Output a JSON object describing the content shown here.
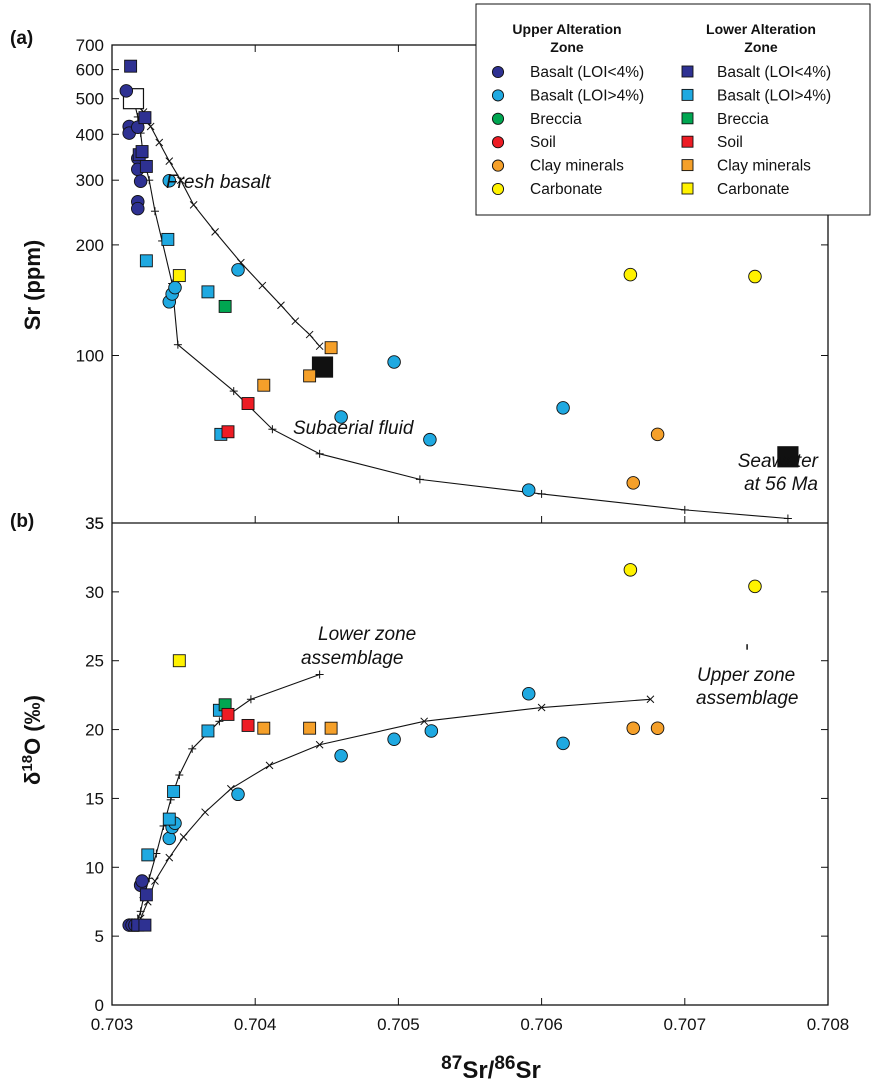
{
  "chart_data": [
    {
      "panel": "(a)",
      "type": "scatter",
      "ylabel": "Sr (ppm)",
      "xlim": [
        0.703,
        0.708
      ],
      "ylim": [
        35,
        700
      ],
      "yticks": [
        100,
        200,
        300,
        400,
        500,
        600,
        700
      ],
      "ytick_labels": [
        "100",
        "200",
        "300",
        "400",
        "500",
        "600",
        "700"
      ],
      "annotations": [
        "Fresh basalt",
        "Subaerial fluid",
        "Seawater",
        "at 56 Ma"
      ],
      "endmembers": [
        {
          "label": "Fresh basalt",
          "x": 0.70315,
          "y": 500,
          "style": "open-square"
        },
        {
          "label": "Seawater at 56 Ma",
          "x": 0.70772,
          "y": 53,
          "style": "filled-square"
        },
        {
          "label": "Subaerial fluid",
          "x": 0.70447,
          "y": 93,
          "style": "filled-square"
        }
      ],
      "series": [
        {
          "name": "Basalt (LOI<4%)",
          "zone": "upper",
          "marker": "circle",
          "color": "#2e3192",
          "points": [
            [
              0.7031,
              525
            ],
            [
              0.70312,
              420
            ],
            [
              0.70312,
              403
            ],
            [
              0.70318,
              418
            ],
            [
              0.70318,
              344
            ],
            [
              0.70318,
              321
            ],
            [
              0.70318,
              262
            ],
            [
              0.70318,
              251
            ],
            [
              0.7032,
              298
            ]
          ]
        },
        {
          "name": "Basalt (LOI>4%)",
          "zone": "upper",
          "marker": "circle",
          "color": "#1fa9e1",
          "points": [
            [
              0.7034,
              299
            ],
            [
              0.7034,
              140
            ],
            [
              0.70342,
              147
            ],
            [
              0.70344,
              153
            ],
            [
              0.70388,
              171
            ],
            [
              0.7046,
              68
            ],
            [
              0.70497,
              96
            ],
            [
              0.70522,
              59
            ],
            [
              0.70591,
              43
            ],
            [
              0.70615,
              72
            ]
          ]
        },
        {
          "name": "Clay minerals",
          "zone": "upper",
          "marker": "circle",
          "color": "#f5a02a",
          "points": [
            [
              0.70664,
              45
            ],
            [
              0.70681,
              61
            ]
          ]
        },
        {
          "name": "Carbonate",
          "zone": "upper",
          "marker": "circle",
          "color": "#fff200",
          "points": [
            [
              0.70662,
              166
            ],
            [
              0.70749,
              164
            ]
          ]
        },
        {
          "name": "Basalt (LOI<4%)",
          "zone": "lower",
          "marker": "square",
          "color": "#2e3192",
          "points": [
            [
              0.70313,
              613
            ],
            [
              0.70319,
              352
            ],
            [
              0.70321,
              359
            ],
            [
              0.70323,
              444
            ],
            [
              0.70324,
              327
            ]
          ]
        },
        {
          "name": "Basalt (LOI>4%)",
          "zone": "lower",
          "marker": "square",
          "color": "#1fa9e1",
          "points": [
            [
              0.70324,
              181
            ],
            [
              0.70339,
              207
            ],
            [
              0.70367,
              149
            ],
            [
              0.70376,
              61
            ]
          ]
        },
        {
          "name": "Breccia",
          "zone": "lower",
          "marker": "square",
          "color": "#00a651",
          "points": [
            [
              0.70379,
              136
            ]
          ]
        },
        {
          "name": "Soil",
          "zone": "lower",
          "marker": "square",
          "color": "#ed1c24",
          "points": [
            [
              0.70381,
              62
            ],
            [
              0.70395,
              74
            ]
          ]
        },
        {
          "name": "Clay minerals",
          "zone": "lower",
          "marker": "square",
          "color": "#f5a02a",
          "points": [
            [
              0.70406,
              83
            ],
            [
              0.70438,
              88
            ],
            [
              0.70453,
              105
            ]
          ]
        },
        {
          "name": "Carbonate",
          "zone": "lower",
          "marker": "square",
          "color": "#fff200",
          "points": [
            [
              0.70347,
              165
            ]
          ]
        }
      ],
      "mixing_curves": [
        {
          "marker": "x",
          "points": [
            [
              0.70315,
              500
            ],
            [
              0.70322,
              460
            ],
            [
              0.70327,
              420
            ],
            [
              0.70333,
              380
            ],
            [
              0.7034,
              338
            ],
            [
              0.70348,
              300
            ],
            [
              0.70357,
              257
            ],
            [
              0.70372,
              217
            ],
            [
              0.7039,
              179
            ],
            [
              0.70405,
              155
            ],
            [
              0.70418,
              137
            ],
            [
              0.70428,
              124
            ],
            [
              0.70438,
              114
            ],
            [
              0.70445,
              106
            ]
          ]
        },
        {
          "marker": "+",
          "points": [
            [
              0.70315,
              500
            ],
            [
              0.70318,
              446
            ],
            [
              0.7032,
              403
            ],
            [
              0.70322,
              345
            ],
            [
              0.70326,
              300
            ],
            [
              0.7033,
              247
            ],
            [
              0.70335,
              205
            ],
            [
              0.70342,
              157
            ],
            [
              0.70346,
              107
            ],
            [
              0.70385,
              80
            ],
            [
              0.70412,
              63
            ],
            [
              0.70445,
              54
            ],
            [
              0.70515,
              46
            ],
            [
              0.706,
              42
            ],
            [
              0.707,
              38
            ],
            [
              0.70772,
              36
            ]
          ]
        }
      ]
    },
    {
      "panel": "(b)",
      "type": "scatter",
      "ylabel": "δ18O (‰)",
      "xlabel": "87Sr/86Sr",
      "xlim": [
        0.703,
        0.708
      ],
      "ylim": [
        0,
        35
      ],
      "xticks": [
        0.703,
        0.704,
        0.705,
        0.706,
        0.707,
        0.708
      ],
      "xtick_labels": [
        "0.703",
        "0.704",
        "0.705",
        "0.706",
        "0.707",
        "0.708"
      ],
      "yticks": [
        0,
        5,
        10,
        15,
        20,
        25,
        30,
        35
      ],
      "ytick_labels": [
        "0",
        "5",
        "10",
        "15",
        "20",
        "25",
        "30",
        "35"
      ],
      "annotations": [
        "Lower zone",
        "assemblage",
        "Upper zone",
        "assemblage"
      ],
      "series": [
        {
          "name": "Basalt (LOI<4%)",
          "zone": "upper",
          "marker": "circle",
          "color": "#2e3192",
          "points": [
            [
              0.70312,
              5.8
            ],
            [
              0.70314,
              5.8
            ],
            [
              0.70316,
              5.8
            ],
            [
              0.70318,
              5.8
            ],
            [
              0.7032,
              8.7
            ],
            [
              0.70321,
              9.0
            ]
          ]
        },
        {
          "name": "Basalt (LOI>4%)",
          "zone": "upper",
          "marker": "circle",
          "color": "#1fa9e1",
          "points": [
            [
              0.7034,
              12.1
            ],
            [
              0.70342,
              12.9
            ],
            [
              0.70344,
              13.2
            ],
            [
              0.70388,
              15.3
            ],
            [
              0.7046,
              18.1
            ],
            [
              0.70497,
              19.3
            ],
            [
              0.70523,
              19.9
            ],
            [
              0.70591,
              22.6
            ],
            [
              0.70615,
              19.0
            ]
          ]
        },
        {
          "name": "Clay minerals",
          "zone": "upper",
          "marker": "circle",
          "color": "#f5a02a",
          "points": [
            [
              0.70664,
              20.1
            ],
            [
              0.70681,
              20.1
            ]
          ]
        },
        {
          "name": "Carbonate",
          "zone": "upper",
          "marker": "circle",
          "color": "#fff200",
          "points": [
            [
              0.70662,
              31.6
            ],
            [
              0.70749,
              30.4
            ]
          ]
        },
        {
          "name": "Basalt (LOI<4%)",
          "zone": "lower",
          "marker": "square",
          "color": "#2e3192",
          "points": [
            [
              0.70318,
              5.8
            ],
            [
              0.70323,
              5.8
            ],
            [
              0.70324,
              8.0
            ]
          ]
        },
        {
          "name": "Basalt (LOI>4%)",
          "zone": "lower",
          "marker": "square",
          "color": "#1fa9e1",
          "points": [
            [
              0.70325,
              10.9
            ],
            [
              0.7034,
              13.5
            ],
            [
              0.70343,
              15.5
            ],
            [
              0.70367,
              19.9
            ],
            [
              0.70375,
              21.4
            ]
          ]
        },
        {
          "name": "Breccia",
          "zone": "lower",
          "marker": "square",
          "color": "#00a651",
          "points": [
            [
              0.70379,
              21.8
            ]
          ]
        },
        {
          "name": "Soil",
          "zone": "lower",
          "marker": "square",
          "color": "#ed1c24",
          "points": [
            [
              0.70381,
              21.1
            ],
            [
              0.70395,
              20.3
            ]
          ]
        },
        {
          "name": "Clay minerals",
          "zone": "lower",
          "marker": "square",
          "color": "#f5a02a",
          "points": [
            [
              0.70406,
              20.1
            ],
            [
              0.70438,
              20.1
            ],
            [
              0.70453,
              20.1
            ]
          ]
        },
        {
          "name": "Carbonate",
          "zone": "lower",
          "marker": "square",
          "color": "#fff200",
          "points": [
            [
              0.70347,
              25.0
            ]
          ]
        }
      ],
      "mixing_curves": [
        {
          "label": "Upper zone assemblage",
          "marker": "x",
          "points": [
            [
              0.70315,
              5.8
            ],
            [
              0.7032,
              6.3
            ],
            [
              0.70325,
              7.5
            ],
            [
              0.7033,
              9.0
            ],
            [
              0.7034,
              10.7
            ],
            [
              0.7035,
              12.2
            ],
            [
              0.70365,
              14.0
            ],
            [
              0.70383,
              15.7
            ],
            [
              0.7041,
              17.4
            ],
            [
              0.70445,
              18.9
            ],
            [
              0.70518,
              20.6
            ],
            [
              0.706,
              21.6
            ],
            [
              0.70676,
              22.2
            ]
          ]
        },
        {
          "label": "Lower zone assemblage",
          "marker": "+",
          "points": [
            [
              0.70315,
              5.8
            ],
            [
              0.70318,
              6.2
            ],
            [
              0.7032,
              6.8
            ],
            [
              0.70322,
              7.8
            ],
            [
              0.70326,
              9.2
            ],
            [
              0.70331,
              11.0
            ],
            [
              0.70336,
              13.0
            ],
            [
              0.70341,
              14.9
            ],
            [
              0.70347,
              16.7
            ],
            [
              0.70356,
              18.6
            ],
            [
              0.70375,
              20.6
            ],
            [
              0.70397,
              22.2
            ],
            [
              0.70445,
              24.0
            ]
          ]
        }
      ]
    }
  ],
  "legend": {
    "headers": [
      "Upper Alteration",
      "Zone",
      "Lower Alteration",
      "Zone"
    ],
    "items": [
      "Basalt (LOI<4%)",
      "Basalt (LOI>4%)",
      "Breccia",
      "Soil",
      "Clay minerals",
      "Carbonate"
    ],
    "colors": [
      "#2e3192",
      "#1fa9e1",
      "#00a651",
      "#ed1c24",
      "#f5a02a",
      "#fff200"
    ],
    "placement": "top-right"
  }
}
